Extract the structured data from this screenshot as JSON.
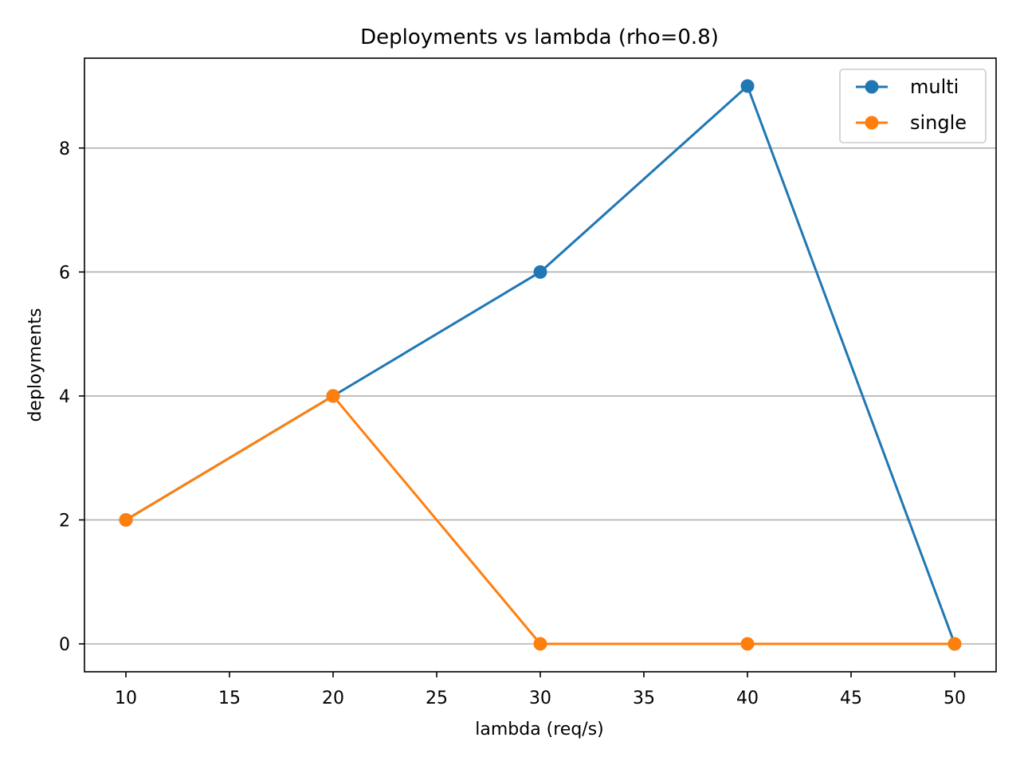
{
  "chart_data": {
    "type": "line",
    "title": "Deployments vs lambda (rho=0.8)",
    "xlabel": "lambda (req/s)",
    "ylabel": "deployments",
    "x": [
      10,
      20,
      30,
      40,
      50
    ],
    "series": [
      {
        "name": "multi",
        "values": [
          2,
          4,
          6,
          9,
          0
        ],
        "color": "#1f77b4"
      },
      {
        "name": "single",
        "values": [
          2,
          4,
          0,
          0,
          0
        ],
        "color": "#ff7f0e"
      }
    ],
    "xlim": [
      8,
      52
    ],
    "ylim": [
      -0.45,
      9.45
    ],
    "xticks": [
      10,
      15,
      20,
      25,
      30,
      35,
      40,
      45,
      50
    ],
    "yticks": [
      0,
      2,
      4,
      6,
      8
    ],
    "grid": "y",
    "legend": "top-right"
  }
}
